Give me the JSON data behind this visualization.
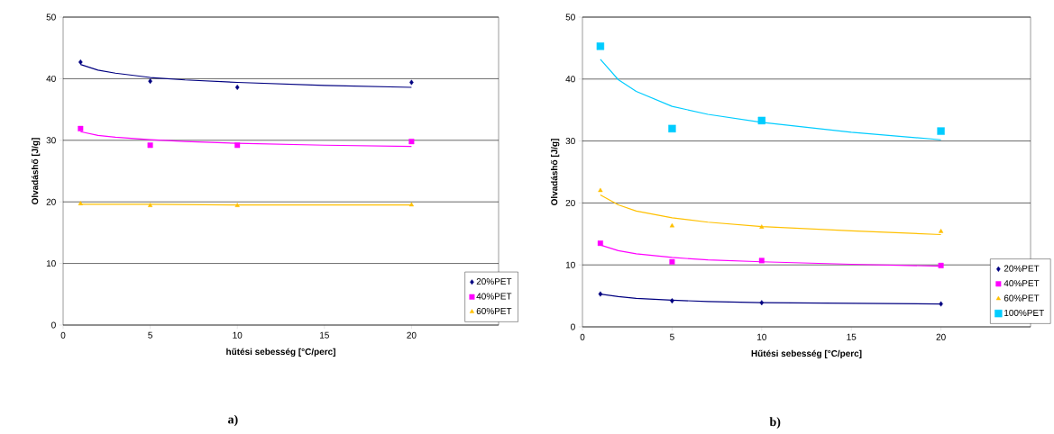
{
  "chart_data": [
    {
      "type": "scatter",
      "xlabel": "hűtési sebesség [°C/perc]",
      "ylabel": "Olvadáshő [J/g]",
      "annotations": [
        "a)"
      ],
      "xlim": [
        0,
        25
      ],
      "ylim": [
        0,
        50
      ],
      "xticks": [
        0,
        5,
        10,
        15,
        20
      ],
      "yticks": [
        0,
        10,
        20,
        30,
        40,
        50
      ],
      "grid": "y",
      "legend": "bottom right",
      "series": [
        {
          "name": "20%PET",
          "marker": "diamond",
          "color": "#000080",
          "x": [
            1,
            5,
            10,
            20
          ],
          "values": [
            42.7,
            39.6,
            38.6,
            39.4
          ]
        },
        {
          "name": "40%PET",
          "marker": "square",
          "color": "#ff00ff",
          "x": [
            1,
            5,
            10,
            20
          ],
          "values": [
            31.9,
            29.2,
            29.2,
            29.8
          ]
        },
        {
          "name": "60%PET",
          "marker": "triangle",
          "color": "#ffc000",
          "x": [
            1,
            5,
            10,
            20
          ],
          "values": [
            19.7,
            19.4,
            19.4,
            19.5
          ]
        },
        {
          "type": "line",
          "marker": "none",
          "color": "#000080",
          "x": [
            1,
            2,
            3,
            5,
            7,
            10,
            15,
            20
          ],
          "values": [
            42.3,
            41.4,
            40.9,
            40.2,
            39.8,
            39.4,
            38.9,
            38.6
          ]
        },
        {
          "type": "line",
          "marker": "none",
          "color": "#ff00ff",
          "x": [
            1,
            2,
            3,
            5,
            7,
            10,
            15,
            20
          ],
          "values": [
            31.4,
            30.8,
            30.5,
            30.1,
            29.8,
            29.5,
            29.2,
            29.0
          ]
        },
        {
          "type": "line",
          "marker": "none",
          "color": "#ffc000",
          "x": [
            1,
            5,
            10,
            20
          ],
          "values": [
            19.6,
            19.6,
            19.5,
            19.5
          ]
        }
      ]
    },
    {
      "type": "scatter",
      "xlabel": "Hűtési sebesség [°C/perc]",
      "ylabel": "Olvadáshő [J/g]",
      "annotations": [
        "b)"
      ],
      "xlim": [
        0,
        25
      ],
      "ylim": [
        0,
        50
      ],
      "xticks": [
        0,
        5,
        10,
        15,
        20
      ],
      "yticks": [
        0,
        10,
        20,
        30,
        40,
        50
      ],
      "grid": "y",
      "legend": "bottom right",
      "series": [
        {
          "name": "20%PET",
          "marker": "diamond",
          "color": "#000080",
          "x": [
            1,
            5,
            10,
            20
          ],
          "values": [
            5.3,
            4.2,
            3.9,
            3.7
          ]
        },
        {
          "name": "40%PET",
          "marker": "square",
          "color": "#ff00ff",
          "x": [
            1,
            5,
            10,
            20
          ],
          "values": [
            13.5,
            10.5,
            10.7,
            9.9
          ]
        },
        {
          "name": "60%PET",
          "marker": "triangle",
          "color": "#ffc000",
          "x": [
            1,
            5,
            10,
            20
          ],
          "values": [
            22.0,
            16.3,
            16.1,
            15.4
          ]
        },
        {
          "name": "100%PET",
          "marker": "square",
          "color": "#00ccff",
          "x": [
            1,
            5,
            10,
            20
          ],
          "values": [
            45.3,
            32.0,
            33.3,
            31.6
          ]
        },
        {
          "type": "line",
          "marker": "none",
          "color": "#000080",
          "x": [
            1,
            2,
            3,
            5,
            7,
            10,
            15,
            20
          ],
          "values": [
            5.3,
            4.9,
            4.6,
            4.3,
            4.1,
            3.9,
            3.8,
            3.7
          ]
        },
        {
          "type": "line",
          "marker": "none",
          "color": "#ff00ff",
          "x": [
            1,
            2,
            3,
            5,
            7,
            10,
            15,
            20
          ],
          "values": [
            13.2,
            12.3,
            11.8,
            11.2,
            10.8,
            10.5,
            10.1,
            9.8
          ]
        },
        {
          "type": "line",
          "marker": "none",
          "color": "#ffc000",
          "x": [
            1,
            2,
            3,
            5,
            7,
            10,
            15,
            20
          ],
          "values": [
            21.3,
            19.7,
            18.7,
            17.6,
            16.9,
            16.2,
            15.5,
            14.9
          ]
        },
        {
          "type": "line",
          "marker": "none",
          "color": "#00ccff",
          "x": [
            1,
            2,
            3,
            5,
            7,
            10,
            15,
            20
          ],
          "values": [
            43.2,
            39.9,
            38.0,
            35.6,
            34.3,
            33.0,
            31.4,
            30.2
          ]
        }
      ]
    }
  ]
}
